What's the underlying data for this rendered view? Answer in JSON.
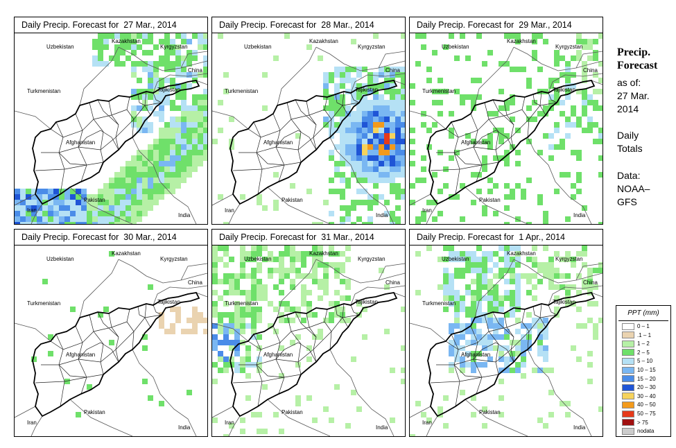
{
  "panels": [
    {
      "title": "Daily Precip. Forecast for  27 Mar., 2014",
      "pattern": "widespread"
    },
    {
      "title": "Daily Precip. Forecast for  28 Mar., 2014",
      "pattern": "east-heavy"
    },
    {
      "title": "Daily Precip. Forecast for  29 Mar., 2014",
      "pattern": "scattered"
    },
    {
      "title": "Daily Precip. Forecast for  30 Mar., 2014",
      "pattern": "dry"
    },
    {
      "title": "Daily Precip. Forecast for  31 Mar., 2014",
      "pattern": "west"
    },
    {
      "title": "Daily Precip. Forecast for  1 Apr., 2014",
      "pattern": "north-central"
    }
  ],
  "map_labels": {
    "kazakhstan": "Kazakhstan",
    "uzbekistan": "Uzbekistan",
    "kyrgyzstan": "Kyrgyzstan",
    "china": "China",
    "turkmenistan": "Turkmenistan",
    "tajikistan": "Tajikistan",
    "afghanistan": "Afghanistan",
    "pakistan": "Pakistan",
    "iran": "Iran",
    "india": "India"
  },
  "sidebar": {
    "title_line1": "Precip.",
    "title_line2": "Forecast",
    "asof_line1": "as of:",
    "asof_line2": "27 Mar.",
    "asof_line3": "2014",
    "totals_line1": "Daily",
    "totals_line2": "Totals",
    "data_line1": "Data:",
    "data_line2": "NOAA–",
    "data_line3": "GFS"
  },
  "legend": {
    "title": "PPT (mm)",
    "items": [
      {
        "label": "0 – 1",
        "color": "#ffffff"
      },
      {
        "label": ".1 – 1",
        "color": "#ead3b0"
      },
      {
        "label": "1 – 2",
        "color": "#b6f0a6"
      },
      {
        "label": "2 – 5",
        "color": "#6fe06a"
      },
      {
        "label": "5 – 10",
        "color": "#b5e1f5"
      },
      {
        "label": "10 – 15",
        "color": "#7ab7f2"
      },
      {
        "label": "15 – 20",
        "color": "#4a8ce8"
      },
      {
        "label": "20 – 30",
        "color": "#1f55d6"
      },
      {
        "label": "30 – 40",
        "color": "#f6d35c"
      },
      {
        "label": "40 – 50",
        "color": "#f39a1c"
      },
      {
        "label": "50 – 75",
        "color": "#e63a1a"
      },
      {
        "label": "> 75",
        "color": "#a01010"
      },
      {
        "label": "nodata",
        "color": "#cccccc"
      }
    ]
  }
}
